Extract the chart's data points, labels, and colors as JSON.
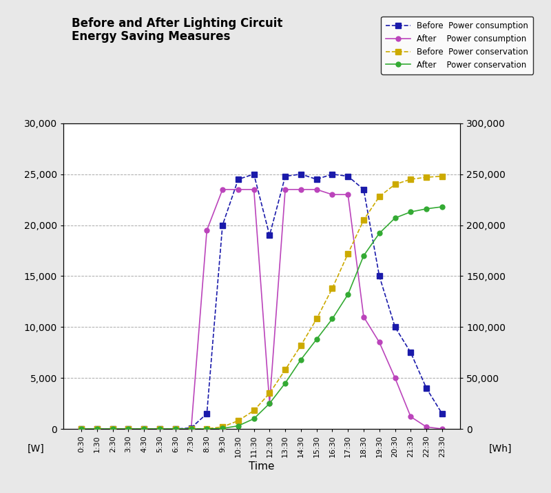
{
  "title_line1": "Before and After Lighting Circuit",
  "title_line2": "Energy Saving Measures",
  "xlabel": "Time",
  "ylabel_left": "[W]",
  "ylabel_right": "[Wh]",
  "time_labels": [
    "0:30",
    "1:30",
    "2:30",
    "3:30",
    "4:30",
    "5:30",
    "6:30",
    "7:30",
    "8:30",
    "9:30",
    "10:30",
    "11:30",
    "12:30",
    "13:30",
    "14:30",
    "15:30",
    "16:30",
    "17:30",
    "18:30",
    "19:30",
    "20:30",
    "21:30",
    "22:30",
    "23:30"
  ],
  "ylim_left": [
    0,
    30000
  ],
  "ylim_right": [
    0,
    300000
  ],
  "yticks_left": [
    0,
    5000,
    10000,
    15000,
    20000,
    25000,
    30000
  ],
  "yticks_right": [
    0,
    50000,
    100000,
    150000,
    200000,
    250000,
    300000
  ],
  "before_power_consumption": [
    0,
    0,
    0,
    0,
    0,
    0,
    0,
    100,
    1500,
    20000,
    24500,
    25000,
    19000,
    24800,
    25000,
    24500,
    25000,
    24800,
    23500,
    15000,
    10000,
    7500,
    4000,
    1500
  ],
  "after_power_consumption": [
    0,
    0,
    0,
    0,
    0,
    0,
    0,
    0,
    19500,
    23500,
    23500,
    23500,
    2500,
    23500,
    23500,
    23500,
    23000,
    23000,
    11000,
    8500,
    5000,
    1200,
    200,
    0
  ],
  "before_power_conservation": [
    0,
    0,
    0,
    0,
    0,
    0,
    0,
    0,
    200,
    2000,
    8000,
    18000,
    35000,
    58000,
    82000,
    108000,
    138000,
    172000,
    205000,
    228000,
    240000,
    245000,
    247000,
    248000
  ],
  "after_power_conservation": [
    0,
    0,
    0,
    0,
    0,
    0,
    0,
    0,
    0,
    500,
    3000,
    10000,
    25000,
    45000,
    68000,
    88000,
    108000,
    132000,
    170000,
    192000,
    207000,
    213000,
    216000,
    218000
  ],
  "color_before_power": "#1a1aaa",
  "color_after_power": "#bb44bb",
  "color_before_conservation": "#ccaa00",
  "color_after_conservation": "#33aa33",
  "background_color": "#e8e8e8",
  "plot_bg": "#ffffff",
  "grid_color": "#aaaaaa",
  "legend_labels": [
    "Before  Power consumption",
    "After    Power consumption",
    "Before  Power conservation",
    "After    Power conservation"
  ]
}
